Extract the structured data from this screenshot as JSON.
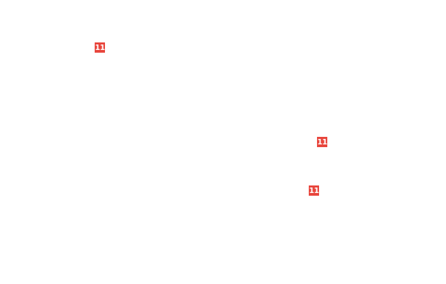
{
  "badge_color": "#e8453c",
  "badges": [
    {
      "label": "11"
    },
    {
      "label": "11"
    },
    {
      "label": "11"
    }
  ]
}
